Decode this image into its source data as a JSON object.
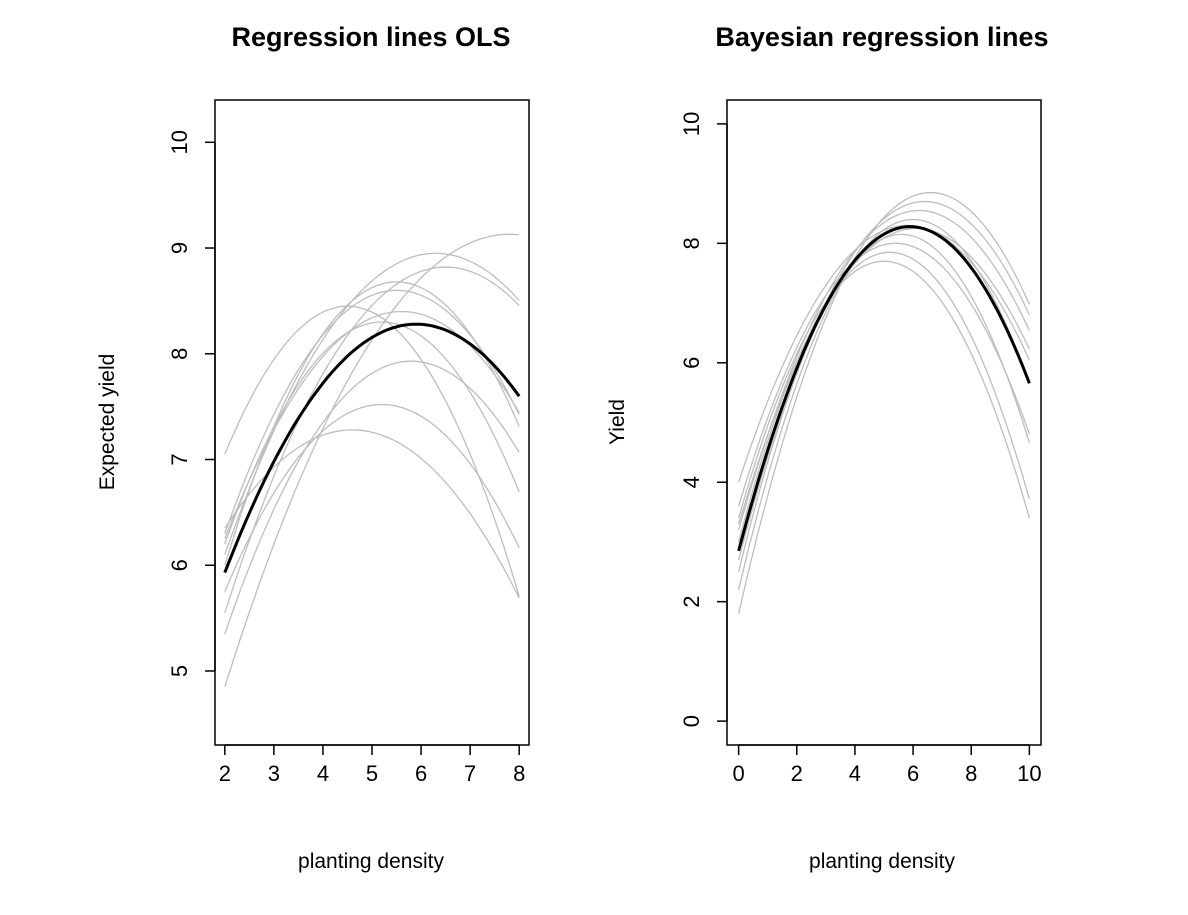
{
  "chart_data": [
    {
      "type": "line",
      "title": "Regression lines OLS",
      "xlabel": "planting density",
      "ylabel": "Expected yield",
      "xlim": [
        1.8,
        8.2
      ],
      "ylim": [
        4.3,
        10.4
      ],
      "x_ticks": [
        2,
        3,
        4,
        5,
        6,
        7,
        8
      ],
      "y_ticks": [
        5,
        6,
        7,
        8,
        9,
        10
      ],
      "x_range": [
        2,
        8
      ],
      "grid": false,
      "mean_curve": {
        "name": "mean",
        "vertex_x": 5.9,
        "vertex_y": 8.28,
        "value_at_start": 5.93
      },
      "sample_curves": [
        {
          "vertex_x": 4.5,
          "vertex_y": 8.45,
          "value_at_start": 7.05
        },
        {
          "vertex_x": 4.6,
          "vertex_y": 7.28,
          "value_at_start": 6.35
        },
        {
          "vertex_x": 5.2,
          "vertex_y": 7.52,
          "value_at_start": 5.75
        },
        {
          "vertex_x": 5.8,
          "vertex_y": 7.93,
          "value_at_start": 5.35
        },
        {
          "vertex_x": 5.6,
          "vertex_y": 8.4,
          "value_at_start": 6.25
        },
        {
          "vertex_x": 5.5,
          "vertex_y": 8.6,
          "value_at_start": 6.3
        },
        {
          "vertex_x": 5.5,
          "vertex_y": 8.68,
          "value_at_start": 6.0
        },
        {
          "vertex_x": 6.3,
          "vertex_y": 8.95,
          "value_at_start": 6.1
        },
        {
          "vertex_x": 6.5,
          "vertex_y": 8.82,
          "value_at_start": 5.55
        },
        {
          "vertex_x": 7.8,
          "vertex_y": 9.13,
          "value_at_start": 4.85
        },
        {
          "vertex_x": 5.2,
          "vertex_y": 8.3,
          "value_at_start": 6.2
        }
      ]
    },
    {
      "type": "line",
      "title": "Bayesian regression lines",
      "xlabel": "planting density",
      "ylabel": "Yield",
      "xlim": [
        -0.4,
        10.4
      ],
      "ylim": [
        -0.4,
        10.4
      ],
      "x_ticks": [
        0,
        2,
        4,
        6,
        8,
        10
      ],
      "y_ticks": [
        0,
        2,
        4,
        6,
        8,
        10
      ],
      "x_range": [
        0,
        10
      ],
      "grid": false,
      "mean_curve": {
        "name": "mean",
        "vertex_x": 5.9,
        "vertex_y": 8.28,
        "value_at_start": 2.85
      },
      "sample_curves": [
        {
          "vertex_x": 5.0,
          "vertex_y": 7.7,
          "value_at_start": 3.4
        },
        {
          "vertex_x": 5.2,
          "vertex_y": 7.85,
          "value_at_start": 3.0
        },
        {
          "vertex_x": 5.4,
          "vertex_y": 8.0,
          "value_at_start": 3.6
        },
        {
          "vertex_x": 5.6,
          "vertex_y": 8.15,
          "value_at_start": 2.5
        },
        {
          "vertex_x": 5.8,
          "vertex_y": 8.3,
          "value_at_start": 4.0
        },
        {
          "vertex_x": 6.0,
          "vertex_y": 8.4,
          "value_at_start": 2.2
        },
        {
          "vertex_x": 6.2,
          "vertex_y": 8.55,
          "value_at_start": 3.2
        },
        {
          "vertex_x": 6.4,
          "vertex_y": 8.7,
          "value_at_start": 2.7
        },
        {
          "vertex_x": 6.6,
          "vertex_y": 8.85,
          "value_at_start": 1.8
        },
        {
          "vertex_x": 6.1,
          "vertex_y": 8.25,
          "value_at_start": 3.3
        }
      ]
    }
  ]
}
